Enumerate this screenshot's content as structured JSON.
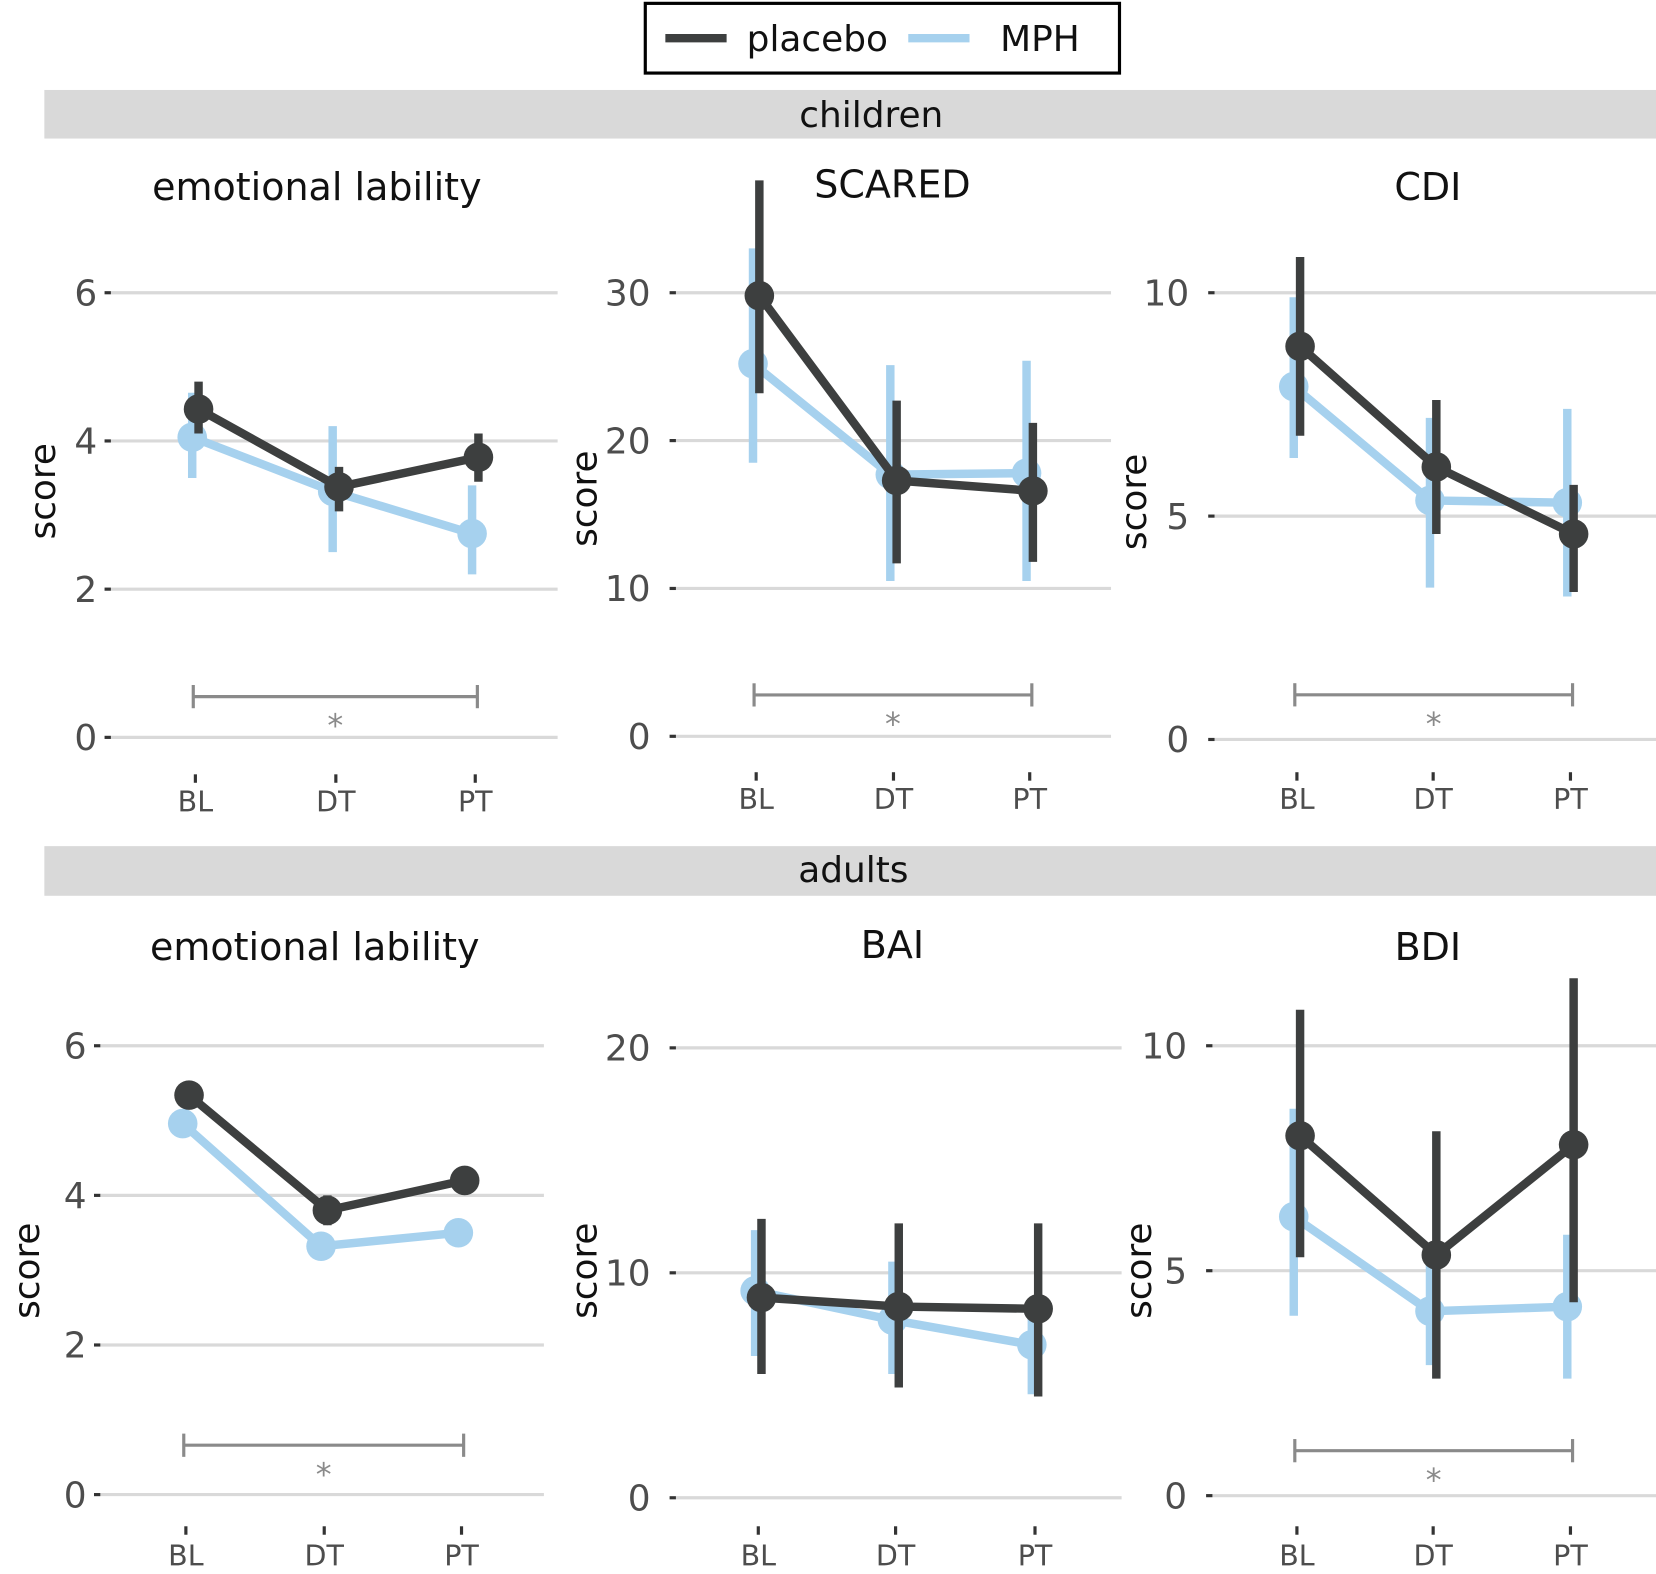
{
  "legend": {
    "items": [
      {
        "label": "placebo",
        "color": "#3d3f3f"
      },
      {
        "label": "MPH",
        "color": "#a6d1ee"
      }
    ]
  },
  "strips": [
    "children",
    "adults"
  ],
  "significance_color": "#8a8a8a",
  "chart_data": [
    {
      "type": "line",
      "group": "children",
      "title": "emotional lability",
      "ylabel": "score",
      "categories": [
        "BL",
        "DT",
        "PT"
      ],
      "yticks": [
        0,
        2,
        4,
        6
      ],
      "ylim": [
        0,
        6
      ],
      "grid": true,
      "series": [
        {
          "name": "placebo",
          "values": [
            4.43,
            3.38,
            3.78
          ],
          "lower": [
            4.1,
            3.05,
            3.45
          ],
          "upper": [
            4.8,
            3.65,
            4.1
          ]
        },
        {
          "name": "MPH",
          "values": [
            4.05,
            3.32,
            2.75
          ],
          "lower": [
            3.5,
            2.5,
            2.2
          ],
          "upper": [
            4.65,
            4.2,
            3.4
          ]
        }
      ],
      "significance": {
        "from": "BL",
        "to": "PT",
        "y": 0.55,
        "label": "*"
      }
    },
    {
      "type": "line",
      "group": "children",
      "title": "SCARED",
      "ylabel": "score",
      "categories": [
        "BL",
        "DT",
        "PT"
      ],
      "yticks": [
        0,
        10,
        20,
        30
      ],
      "ylim": [
        0,
        30
      ],
      "grid": true,
      "series": [
        {
          "name": "placebo",
          "values": [
            29.8,
            17.3,
            16.6
          ],
          "lower": [
            23.2,
            11.7,
            11.8
          ],
          "upper": [
            37.6,
            22.7,
            21.2
          ]
        },
        {
          "name": "MPH",
          "values": [
            25.2,
            17.7,
            17.8
          ],
          "lower": [
            18.5,
            10.5,
            10.5
          ],
          "upper": [
            33.0,
            25.1,
            25.4
          ]
        }
      ],
      "significance": {
        "from": "BL",
        "to": "PT",
        "y": 2.8,
        "label": "*"
      }
    },
    {
      "type": "line",
      "group": "children",
      "title": "CDI",
      "ylabel": "score",
      "categories": [
        "BL",
        "DT",
        "PT"
      ],
      "yticks": [
        0,
        5,
        10
      ],
      "ylim": [
        0,
        10
      ],
      "grid": true,
      "series": [
        {
          "name": "placebo",
          "values": [
            8.8,
            6.1,
            4.6
          ],
          "lower": [
            6.8,
            4.6,
            3.3
          ],
          "upper": [
            10.8,
            7.6,
            5.7
          ]
        },
        {
          "name": "MPH",
          "values": [
            7.9,
            5.35,
            5.3
          ],
          "lower": [
            6.3,
            3.4,
            3.2
          ],
          "upper": [
            9.9,
            7.2,
            7.4
          ]
        }
      ],
      "significance": {
        "from": "BL",
        "to": "PT",
        "y": 1.0,
        "label": "*"
      }
    },
    {
      "type": "line",
      "group": "adults",
      "title": "emotional lability",
      "ylabel": "score",
      "categories": [
        "BL",
        "DT",
        "PT"
      ],
      "yticks": [
        0,
        2,
        4,
        6
      ],
      "ylim": [
        0,
        6
      ],
      "grid": true,
      "series": [
        {
          "name": "placebo",
          "values": [
            5.34,
            3.8,
            4.2
          ],
          "lower": [
            5.25,
            3.6,
            4.05
          ],
          "upper": [
            5.45,
            4.0,
            4.35
          ]
        },
        {
          "name": "MPH",
          "values": [
            4.96,
            3.32,
            3.5
          ],
          "lower": [
            4.88,
            3.25,
            3.43
          ],
          "upper": [
            5.05,
            3.4,
            3.58
          ]
        }
      ],
      "significance": {
        "from": "BL",
        "to": "PT",
        "y": 0.66,
        "label": "*"
      }
    },
    {
      "type": "line",
      "group": "adults",
      "title": "BAI",
      "ylabel": "score",
      "categories": [
        "BL",
        "DT",
        "PT"
      ],
      "yticks": [
        0,
        10,
        20
      ],
      "ylim": [
        0,
        20
      ],
      "grid": true,
      "series": [
        {
          "name": "placebo",
          "values": [
            8.9,
            8.5,
            8.4
          ],
          "lower": [
            5.5,
            4.9,
            4.5
          ],
          "upper": [
            12.4,
            12.2,
            12.2
          ]
        },
        {
          "name": "MPH",
          "values": [
            9.2,
            7.9,
            6.8
          ],
          "lower": [
            6.3,
            5.5,
            4.6
          ],
          "upper": [
            11.9,
            10.5,
            8.6
          ]
        }
      ]
    },
    {
      "type": "line",
      "group": "adults",
      "title": "BDI",
      "ylabel": "score",
      "categories": [
        "BL",
        "DT",
        "PT"
      ],
      "yticks": [
        0,
        5,
        10
      ],
      "ylim": [
        0,
        10
      ],
      "grid": true,
      "series": [
        {
          "name": "placebo",
          "values": [
            8.0,
            5.35,
            7.8
          ],
          "lower": [
            5.3,
            2.6,
            4.3
          ],
          "upper": [
            10.8,
            8.1,
            11.5
          ]
        },
        {
          "name": "MPH",
          "values": [
            6.2,
            4.1,
            4.2
          ],
          "lower": [
            4.0,
            2.9,
            2.6
          ],
          "upper": [
            8.6,
            5.2,
            5.8
          ]
        }
      ],
      "significance": {
        "from": "BL",
        "to": "PT",
        "y": 1.0,
        "label": "*"
      }
    }
  ]
}
